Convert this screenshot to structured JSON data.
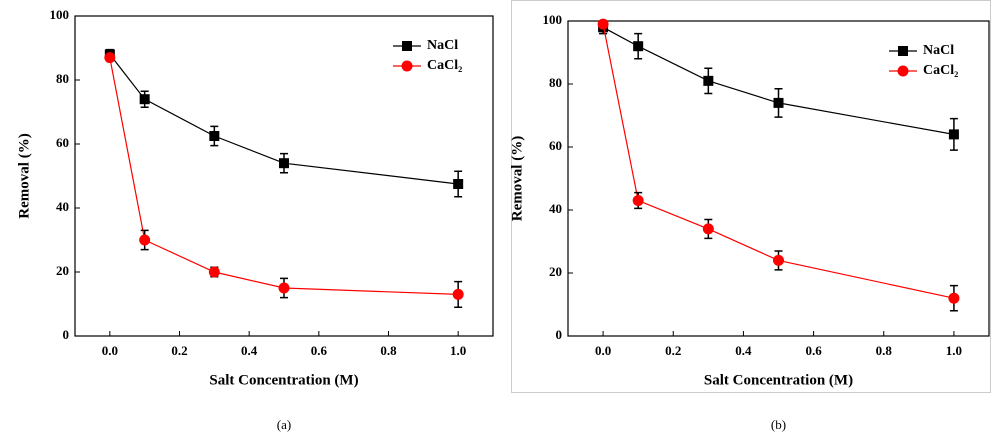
{
  "chart_data": [
    {
      "type": "line",
      "panel_label": "(a)",
      "x_label": "Salt Concentration (M)",
      "y_label": "Removal (%)",
      "x": [
        0,
        0.1,
        0.3,
        0.5,
        1.0
      ],
      "series": [
        {
          "name": "NaCl",
          "color": "#000000",
          "marker": "square",
          "values": [
            88,
            74,
            62.5,
            54,
            47.5
          ],
          "errors": [
            1.5,
            2.5,
            3,
            3,
            4
          ]
        },
        {
          "name": "CaCl₂",
          "color": "#ff0000",
          "marker": "circle",
          "values": [
            87,
            30,
            20,
            15,
            13
          ],
          "errors": [
            1,
            3,
            1.5,
            3,
            4
          ]
        }
      ],
      "xlim": [
        -0.1,
        1.1
      ],
      "ylim": [
        0,
        100
      ],
      "xticks": [
        {
          "value": 0,
          "label": "0.0"
        },
        {
          "value": 0.2,
          "label": "0.2"
        },
        {
          "value": 0.4,
          "label": "0.4"
        },
        {
          "value": 0.6,
          "label": "0.6"
        },
        {
          "value": 0.8,
          "label": "0.8"
        },
        {
          "value": 1.0,
          "label": "1.0"
        }
      ],
      "yticks": [
        0,
        20,
        40,
        60,
        80,
        100
      ],
      "legend": "upper right"
    },
    {
      "type": "line",
      "panel_label": "(b)",
      "x_label": "Salt Concentration (M)",
      "y_label": "Removal (%)",
      "x": [
        0,
        0.1,
        0.3,
        0.5,
        1.0
      ],
      "series": [
        {
          "name": "NaCl",
          "color": "#000000",
          "marker": "square",
          "values": [
            98,
            92,
            81,
            74,
            64
          ],
          "errors": [
            2,
            4,
            4,
            4.5,
            5
          ]
        },
        {
          "name": "CaCl₂",
          "color": "#ff0000",
          "marker": "circle",
          "values": [
            99,
            43,
            34,
            24,
            12
          ],
          "errors": [
            0.5,
            2.5,
            3,
            3,
            4
          ]
        }
      ],
      "xlim": [
        -0.1,
        1.1
      ],
      "ylim": [
        0,
        100
      ],
      "xticks": [
        {
          "value": 0,
          "label": "0.0"
        },
        {
          "value": 0.2,
          "label": "0.2"
        },
        {
          "value": 0.4,
          "label": "0.4"
        },
        {
          "value": 0.6,
          "label": "0.6"
        },
        {
          "value": 0.8,
          "label": "0.8"
        },
        {
          "value": 1.0,
          "label": "1.0"
        }
      ],
      "yticks": [
        0,
        20,
        40,
        60,
        80,
        100
      ],
      "legend": "upper right"
    }
  ]
}
